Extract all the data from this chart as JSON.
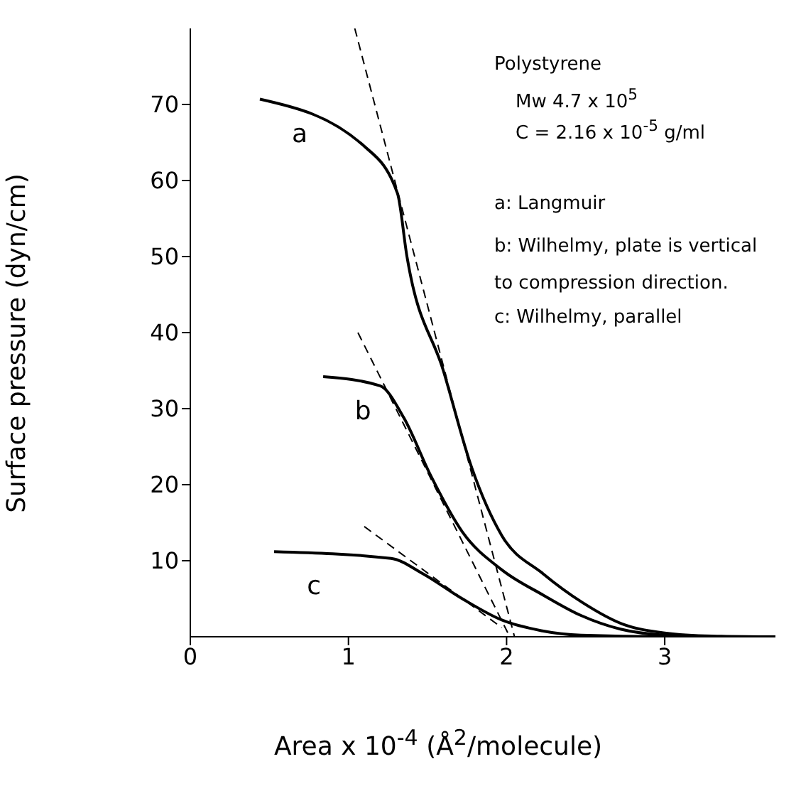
{
  "chart_data": {
    "type": "line",
    "xlabel": "Area x 10$^{-4}$ (Å$^{2}$/molecule)",
    "ylabel": "Surface pressure (dyn/cm)",
    "xlim": [
      0,
      3.7
    ],
    "ylim": [
      0,
      80
    ],
    "xticks": [
      0,
      1,
      2,
      3
    ],
    "yticks": [
      10,
      20,
      30,
      40,
      50,
      60,
      70
    ],
    "marker": "none",
    "series": [
      {
        "name": "a",
        "color": "#000000",
        "line_style": "solid",
        "x": [
          0.44,
          1.1,
          1.31,
          1.37,
          1.6,
          1.78,
          1.97,
          2.23,
          2.48,
          2.73,
          3.0,
          3.3,
          3.7
        ],
        "values": [
          70.7,
          64.5,
          58.3,
          50,
          35,
          22.2,
          13.3,
          8.3,
          4.5,
          1.7,
          0.5,
          0.1,
          0
        ]
      },
      {
        "name": "b",
        "color": "#000000",
        "line_style": "solid",
        "x": [
          0.84,
          1.2,
          1.35,
          1.52,
          1.72,
          1.97,
          2.23,
          2.47,
          2.72,
          3.0,
          3.3,
          3.7
        ],
        "values": [
          34.2,
          33,
          28.8,
          21.2,
          13.8,
          8.8,
          5.5,
          2.8,
          1,
          0.2,
          0,
          0
        ]
      },
      {
        "name": "c",
        "color": "#000000",
        "line_style": "solid",
        "x": [
          0.53,
          1.27,
          1.47,
          1.72,
          1.97,
          2.22,
          2.47,
          3.0,
          3.7
        ],
        "values": [
          11.2,
          10.3,
          8.3,
          5,
          2.2,
          0.8,
          0.2,
          0,
          0
        ]
      },
      {
        "type": "line",
        "color": "#000000",
        "line_style": "dashed",
        "x": [
          1.04,
          2.05
        ],
        "values": [
          80,
          0
        ]
      },
      {
        "type": "line",
        "color": "#000000",
        "line_style": "dashed",
        "x": [
          1.06,
          2.02
        ],
        "values": [
          40,
          0
        ]
      },
      {
        "type": "line",
        "color": "#000000",
        "line_style": "dashed",
        "x": [
          1.1,
          1.97
        ],
        "values": [
          14.5,
          1.2
        ]
      }
    ],
    "annotations": [
      "Polystyrene",
      "Mw 4.7 x 10$^{5}$",
      "C = 2.16 x 10$^{-5}$ g/ml",
      "a: Langmuir",
      "b: Wilhelmy, plate is vertical to compression direction.",
      "c: Wilhelmy, parallel"
    ]
  }
}
